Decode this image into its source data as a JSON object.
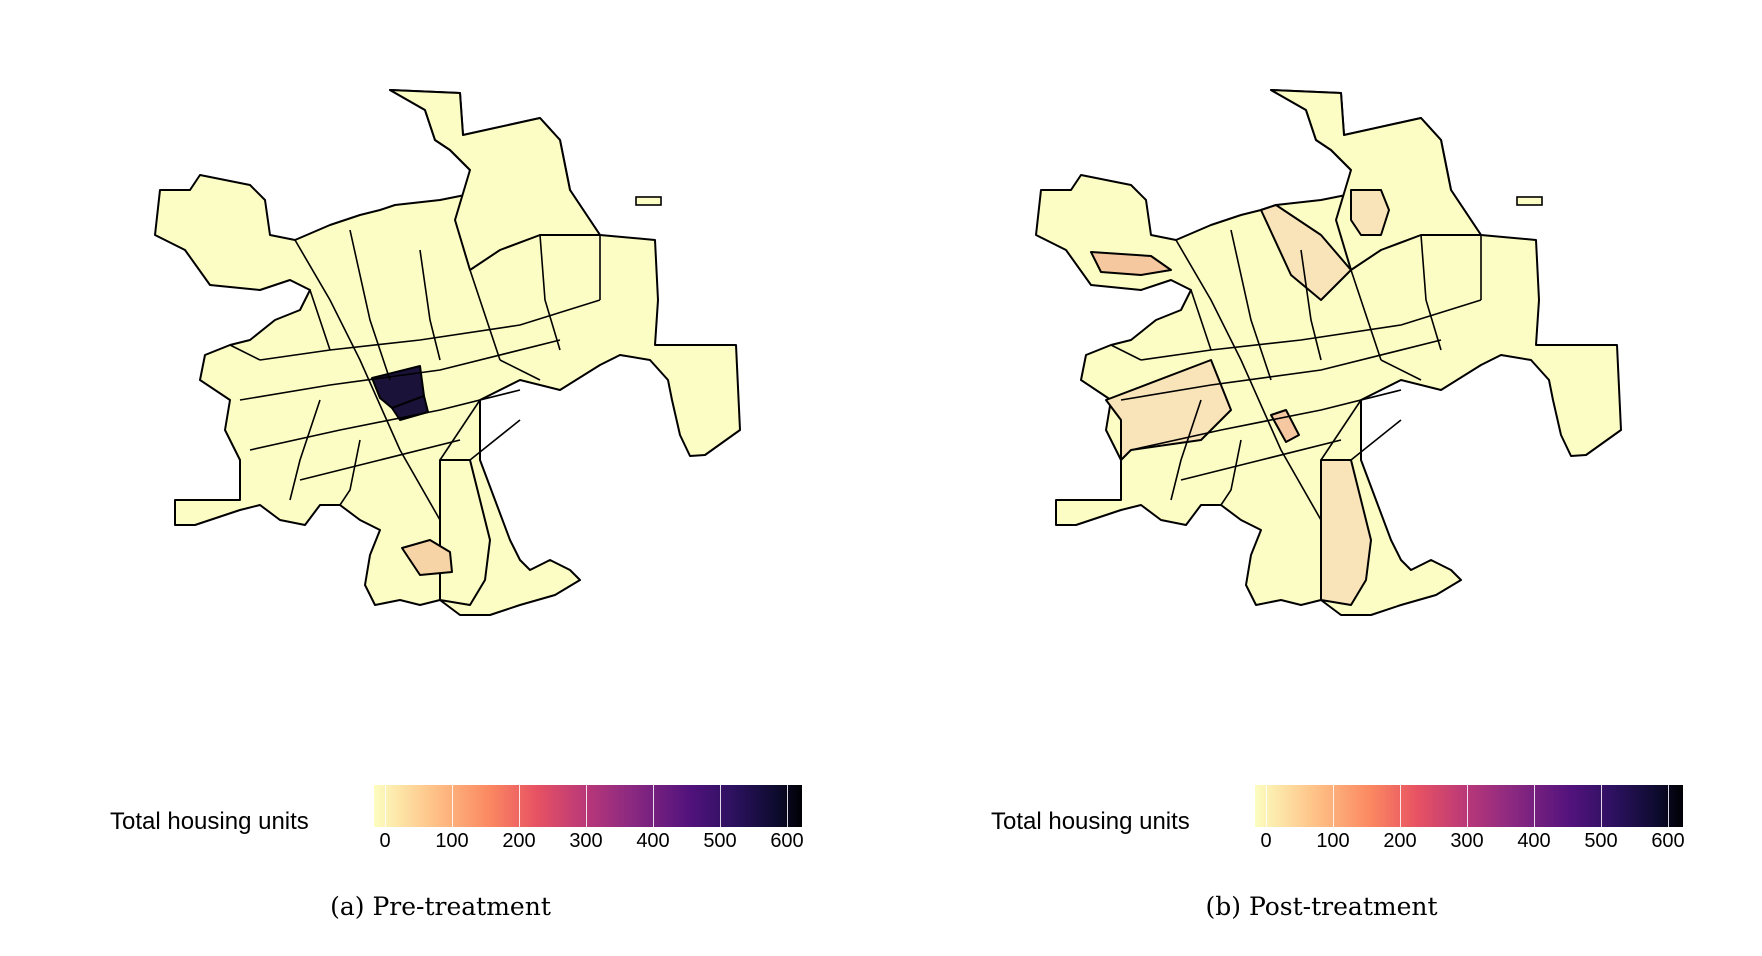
{
  "maps": [
    {
      "caption": "(a) Pre-treatment",
      "legend_title": "Total housing units",
      "legend_ticks": [
        "0",
        "100",
        "200",
        "300",
        "400",
        "500",
        "600"
      ],
      "highlighted_fills": {
        "dark_tract": "#1a1238",
        "light_tract": "#f7d4a6"
      }
    },
    {
      "caption": "(b) Post-treatment",
      "legend_title": "Total housing units",
      "legend_ticks": [
        "0",
        "100",
        "200",
        "300",
        "400",
        "500",
        "600"
      ],
      "highlighted_fills": {
        "tract_a": "#f5c8a0",
        "tract_b": "#f9e3b8",
        "tract_c": "#f6c8a1"
      }
    }
  ],
  "colors": {
    "base_fill": "#fcfdc4",
    "outline": "#000000"
  }
}
